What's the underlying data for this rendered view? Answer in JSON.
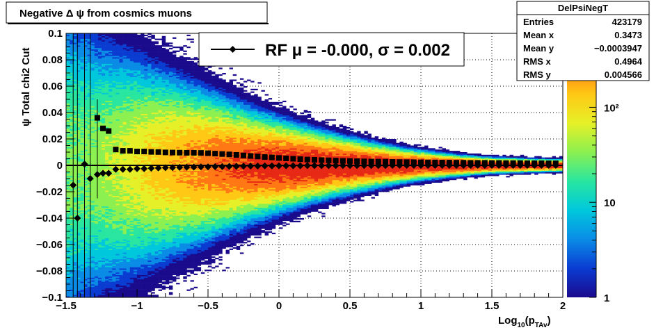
{
  "title": "Negative Δ ψ from cosmics muons",
  "stats_box": {
    "name": "DelPsiNegT",
    "rows": [
      {
        "label": "Entries",
        "value": "423179"
      },
      {
        "label": "Mean x",
        "value": "0.3473"
      },
      {
        "label": "Mean y",
        "value": "−0.0003947"
      },
      {
        "label": "RMS x",
        "value": "0.4964"
      },
      {
        "label": "RMS y",
        "value": "0.004566"
      }
    ]
  },
  "fit_legend": {
    "text": "RF μ = -0.000, σ =   0.002"
  },
  "colors": {
    "profile_markers": "#000000",
    "palette": [
      "#1a0a8c",
      "#0a3cd2",
      "#0a8ce6",
      "#00c8dc",
      "#28e6a0",
      "#8cf050",
      "#e6f028",
      "#ffc814",
      "#ff7814",
      "#e62814"
    ]
  },
  "chart_data": {
    "type": "heatmap",
    "xlabel": "Log10(pTAv)",
    "ylabel": "ψ  Total chi2 Cut",
    "xlim": [
      -1.5,
      2
    ],
    "ylim": [
      -0.1,
      0.1
    ],
    "x_ticks": [
      {
        "v": -1.5,
        "label": "−1.5"
      },
      {
        "v": -1,
        "label": "−1"
      },
      {
        "v": -0.5,
        "label": "−0.5"
      },
      {
        "v": 0,
        "label": "0"
      },
      {
        "v": 0.5,
        "label": "0.5"
      },
      {
        "v": 1,
        "label": "1"
      },
      {
        "v": 1.5,
        "label": "1.5"
      },
      {
        "v": 2,
        "label": "2"
      }
    ],
    "y_ticks": [
      {
        "v": 0.1,
        "label": "0.1"
      },
      {
        "v": 0.08,
        "label": "0.08"
      },
      {
        "v": 0.06,
        "label": "0.06"
      },
      {
        "v": 0.04,
        "label": "0.04"
      },
      {
        "v": 0.02,
        "label": "0.02"
      },
      {
        "v": 0,
        "label": "0"
      },
      {
        "v": -0.02,
        "label": "−0.02"
      },
      {
        "v": -0.04,
        "label": "−0.04"
      },
      {
        "v": -0.06,
        "label": "−0.06"
      },
      {
        "v": -0.08,
        "label": "−0.08"
      },
      {
        "v": -0.1,
        "label": "−0.1"
      }
    ],
    "z_scale": "log",
    "zlim": [
      1,
      600
    ],
    "z_ticks": [
      {
        "v": 1,
        "label": "1"
      },
      {
        "v": 10,
        "label": "10"
      },
      {
        "v": 100,
        "label": "10²"
      }
    ],
    "grid": true,
    "density_model": {
      "description": "Gaussian band around y=0 whose width narrows with increasing x",
      "width_at_x": [
        {
          "x": -1.5,
          "sigma": 0.05
        },
        {
          "x": -0.5,
          "sigma": 0.02
        },
        {
          "x": 0.5,
          "sigma": 0.007
        },
        {
          "x": 1.5,
          "sigma": 0.002
        },
        {
          "x": 2.0,
          "sigma": 0.0015
        }
      ],
      "peak_count": 600
    },
    "rms_profile": {
      "name": "RMS (squares)",
      "points": [
        {
          "x": -1.28,
          "y": 0.036
        },
        {
          "x": -1.24,
          "y": 0.028
        },
        {
          "x": -1.2,
          "y": 0.026
        },
        {
          "x": -1.15,
          "y": 0.012
        },
        {
          "x": -1.1,
          "y": 0.011
        },
        {
          "x": -1.05,
          "y": 0.011
        },
        {
          "x": -1.0,
          "y": 0.0105
        },
        {
          "x": -0.95,
          "y": 0.0105
        },
        {
          "x": -0.9,
          "y": 0.0102
        },
        {
          "x": -0.85,
          "y": 0.0101
        },
        {
          "x": -0.8,
          "y": 0.0098
        },
        {
          "x": -0.75,
          "y": 0.0097
        },
        {
          "x": -0.7,
          "y": 0.0096
        },
        {
          "x": -0.65,
          "y": 0.0095
        },
        {
          "x": -0.6,
          "y": 0.0095
        },
        {
          "x": -0.55,
          "y": 0.0094
        },
        {
          "x": -0.5,
          "y": 0.0092
        },
        {
          "x": -0.45,
          "y": 0.0089
        },
        {
          "x": -0.4,
          "y": 0.0086
        },
        {
          "x": -0.35,
          "y": 0.0083
        },
        {
          "x": -0.3,
          "y": 0.0079
        },
        {
          "x": -0.25,
          "y": 0.0075
        },
        {
          "x": -0.2,
          "y": 0.0071
        },
        {
          "x": -0.15,
          "y": 0.0067
        },
        {
          "x": -0.1,
          "y": 0.0063
        },
        {
          "x": -0.05,
          "y": 0.006
        },
        {
          "x": 0.0,
          "y": 0.0056
        },
        {
          "x": 0.05,
          "y": 0.0053
        },
        {
          "x": 0.1,
          "y": 0.005
        },
        {
          "x": 0.15,
          "y": 0.0047
        },
        {
          "x": 0.2,
          "y": 0.0044
        },
        {
          "x": 0.25,
          "y": 0.0042
        },
        {
          "x": 0.3,
          "y": 0.004
        },
        {
          "x": 0.35,
          "y": 0.0038
        },
        {
          "x": 0.4,
          "y": 0.0036
        },
        {
          "x": 0.45,
          "y": 0.0034
        },
        {
          "x": 0.5,
          "y": 0.0033
        },
        {
          "x": 0.55,
          "y": 0.0031
        },
        {
          "x": 0.6,
          "y": 0.003
        },
        {
          "x": 0.65,
          "y": 0.0029
        },
        {
          "x": 0.7,
          "y": 0.0028
        },
        {
          "x": 0.75,
          "y": 0.0027
        },
        {
          "x": 0.8,
          "y": 0.0026
        },
        {
          "x": 0.85,
          "y": 0.0025
        },
        {
          "x": 0.9,
          "y": 0.0024
        },
        {
          "x": 0.95,
          "y": 0.0024
        },
        {
          "x": 1.0,
          "y": 0.0023
        },
        {
          "x": 1.05,
          "y": 0.0022
        },
        {
          "x": 1.1,
          "y": 0.0022
        },
        {
          "x": 1.15,
          "y": 0.0021
        },
        {
          "x": 1.2,
          "y": 0.0021
        },
        {
          "x": 1.25,
          "y": 0.002
        },
        {
          "x": 1.3,
          "y": 0.002
        },
        {
          "x": 1.35,
          "y": 0.0019
        },
        {
          "x": 1.4,
          "y": 0.0019
        },
        {
          "x": 1.45,
          "y": 0.0019
        },
        {
          "x": 1.5,
          "y": 0.0018
        },
        {
          "x": 1.55,
          "y": 0.0018
        },
        {
          "x": 1.6,
          "y": 0.0017
        },
        {
          "x": 1.65,
          "y": 0.0017
        },
        {
          "x": 1.7,
          "y": 0.0017
        },
        {
          "x": 1.75,
          "y": 0.0016
        },
        {
          "x": 1.8,
          "y": 0.0016
        },
        {
          "x": 1.85,
          "y": 0.0016
        },
        {
          "x": 1.9,
          "y": 0.0015
        },
        {
          "x": 1.95,
          "y": 0.0015
        }
      ]
    },
    "mean_profile": {
      "name": "RF mean (diamonds)",
      "points": [
        {
          "x": -1.42,
          "y": -0.04,
          "err_low": -0.1,
          "err_high": 0.1
        },
        {
          "x": -1.45,
          "y": -0.015,
          "err_low": -0.1,
          "err_high": 0.1
        },
        {
          "x": -1.37,
          "y": 0.001,
          "err_low": -0.1,
          "err_high": 0.1
        },
        {
          "x": -1.33,
          "y": -0.01,
          "err_low": -0.1,
          "err_high": 0.1
        },
        {
          "x": -1.28,
          "y": -0.007,
          "err_low": -0.025,
          "err_high": 0.05
        },
        {
          "x": -1.24,
          "y": -0.006
        },
        {
          "x": -1.2,
          "y": -0.006
        },
        {
          "x": -1.15,
          "y": -0.003
        },
        {
          "x": -1.1,
          "y": -0.003
        },
        {
          "x": -1.05,
          "y": -0.003
        },
        {
          "x": -1.0,
          "y": -0.0025
        },
        {
          "x": -0.95,
          "y": -0.0025
        },
        {
          "x": -0.9,
          "y": -0.0022
        },
        {
          "x": -0.85,
          "y": -0.002
        },
        {
          "x": -0.8,
          "y": -0.0018
        },
        {
          "x": -0.75,
          "y": -0.0017
        },
        {
          "x": -0.7,
          "y": -0.0015
        },
        {
          "x": -0.65,
          "y": -0.0014
        },
        {
          "x": -0.6,
          "y": -0.0013
        },
        {
          "x": -0.55,
          "y": -0.0012
        },
        {
          "x": -0.5,
          "y": -0.0011
        },
        {
          "x": -0.45,
          "y": -0.001
        },
        {
          "x": -0.4,
          "y": -0.0009
        },
        {
          "x": -0.35,
          "y": -0.0008
        },
        {
          "x": -0.3,
          "y": -0.0007
        },
        {
          "x": -0.25,
          "y": -0.0006
        },
        {
          "x": -0.2,
          "y": -0.0005
        },
        {
          "x": -0.15,
          "y": -0.0005
        },
        {
          "x": -0.1,
          "y": -0.0004
        },
        {
          "x": -0.05,
          "y": -0.0004
        },
        {
          "x": 0.0,
          "y": -0.0003
        },
        {
          "x": 0.05,
          "y": -0.0003
        },
        {
          "x": 0.1,
          "y": -0.0003
        },
        {
          "x": 0.15,
          "y": -0.0003
        },
        {
          "x": 0.2,
          "y": -0.0002
        },
        {
          "x": 0.25,
          "y": -0.0002
        },
        {
          "x": 0.3,
          "y": -0.0002
        },
        {
          "x": 0.35,
          "y": -0.0002
        },
        {
          "x": 0.4,
          "y": -0.0002
        },
        {
          "x": 0.45,
          "y": -0.0001
        },
        {
          "x": 0.5,
          "y": -0.0001
        },
        {
          "x": 0.55,
          "y": -0.0001
        },
        {
          "x": 0.6,
          "y": -0.0001
        },
        {
          "x": 0.65,
          "y": -0.0001
        },
        {
          "x": 0.7,
          "y": -0.0001
        },
        {
          "x": 0.75,
          "y": -0.0001
        },
        {
          "x": 0.8,
          "y": 0.0
        },
        {
          "x": 0.85,
          "y": 0.0
        },
        {
          "x": 0.9,
          "y": 0.0
        },
        {
          "x": 0.95,
          "y": 0.0
        },
        {
          "x": 1.0,
          "y": 0.0
        },
        {
          "x": 1.05,
          "y": 0.0
        },
        {
          "x": 1.1,
          "y": 0.0
        },
        {
          "x": 1.15,
          "y": 0.0
        },
        {
          "x": 1.2,
          "y": 0.0
        },
        {
          "x": 1.25,
          "y": 0.0
        },
        {
          "x": 1.3,
          "y": 0.0
        },
        {
          "x": 1.35,
          "y": 0.0
        },
        {
          "x": 1.4,
          "y": 0.0
        },
        {
          "x": 1.45,
          "y": 0.0
        },
        {
          "x": 1.5,
          "y": 0.0
        },
        {
          "x": 1.55,
          "y": 0.0
        },
        {
          "x": 1.6,
          "y": 0.0
        },
        {
          "x": 1.65,
          "y": 0.0
        },
        {
          "x": 1.7,
          "y": 0.0
        },
        {
          "x": 1.75,
          "y": 0.0
        },
        {
          "x": 1.8,
          "y": 0.0
        },
        {
          "x": 1.85,
          "y": 0.0
        },
        {
          "x": 1.9,
          "y": 0.0
        },
        {
          "x": 1.95,
          "y": 0.0
        }
      ]
    },
    "fit_line": {
      "y": 0.0
    }
  }
}
